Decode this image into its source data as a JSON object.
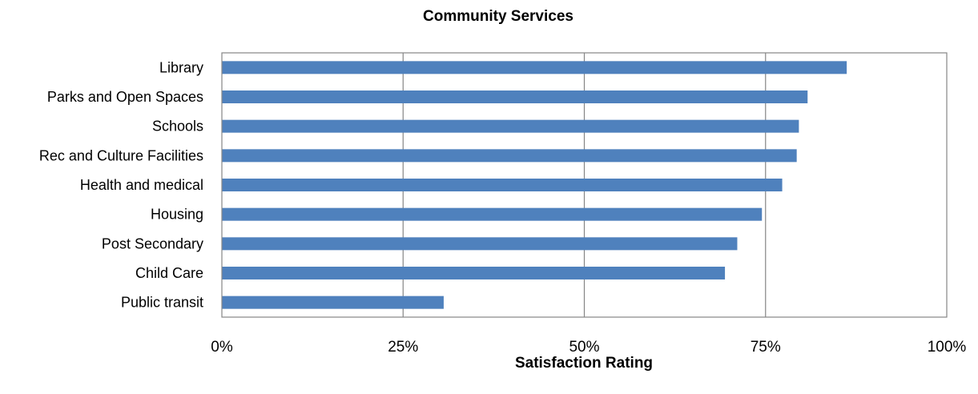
{
  "chart_data": {
    "type": "bar",
    "orientation": "horizontal",
    "title": "Community Services",
    "xlabel": "Satisfaction Rating",
    "ylabel": "",
    "categories": [
      "Library",
      "Parks and Open Spaces",
      "Schools",
      "Rec and Culture Facilities",
      "Health and medical",
      "Housing",
      "Post Secondary",
      "Child Care",
      "Public transit"
    ],
    "values": [
      86.2,
      80.8,
      79.6,
      79.3,
      77.3,
      74.5,
      71.1,
      69.4,
      30.6
    ],
    "xlim": [
      0,
      100
    ],
    "xticks": [
      0,
      25,
      50,
      75,
      100
    ],
    "xtick_labels": [
      "0%",
      "25%",
      "50%",
      "75%",
      "100%"
    ],
    "grid": true,
    "legend": "none",
    "bar_color": "#4f81bd"
  }
}
